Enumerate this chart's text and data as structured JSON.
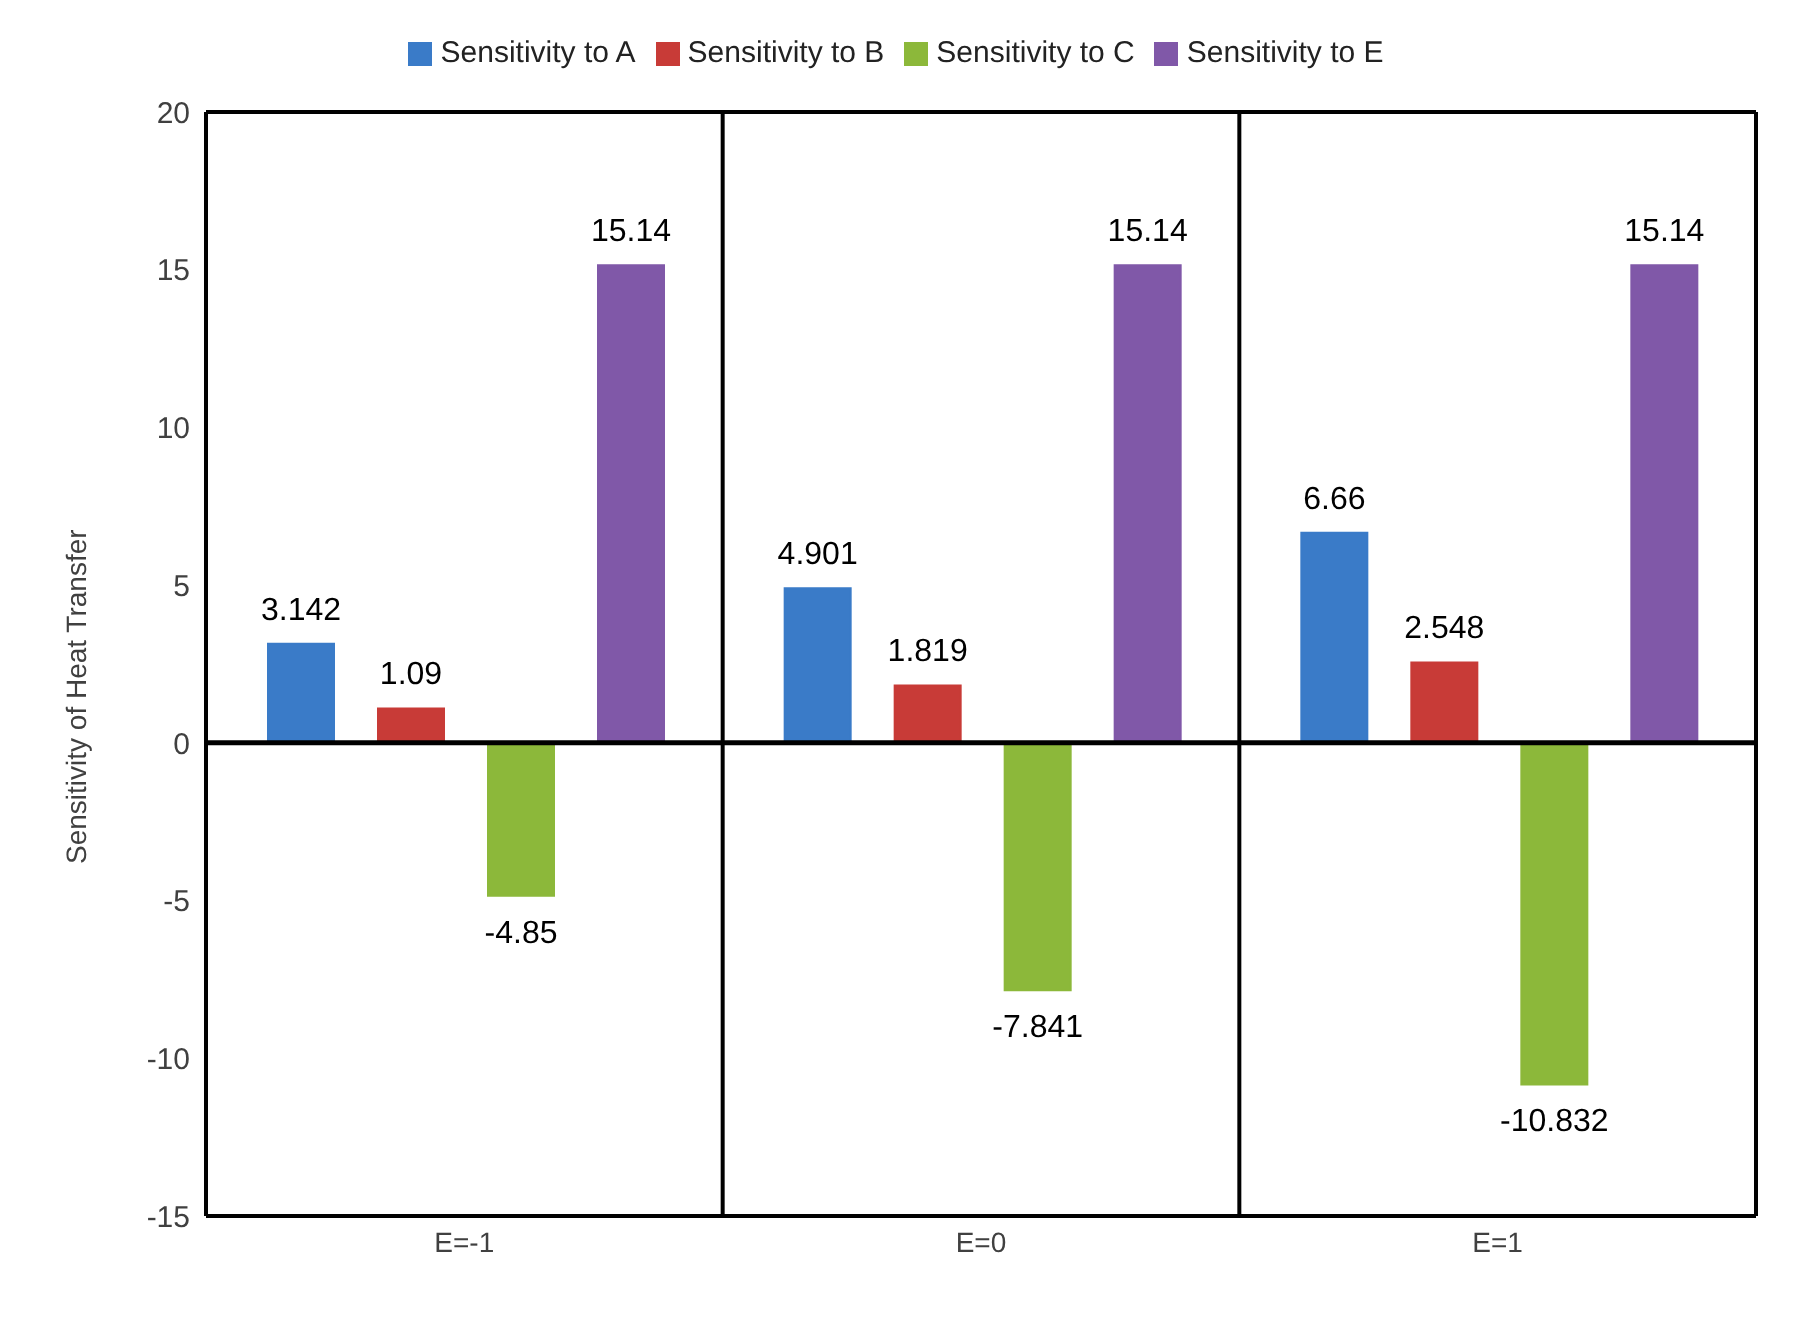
{
  "chart_data": {
    "type": "bar",
    "ylabel": "Sensitivity of Heat Transfer",
    "categories": [
      "E=-1",
      "E=0",
      "E=1"
    ],
    "series": [
      {
        "name": "Sensitivity to A",
        "color": "#3a7bc8",
        "values": [
          3.142,
          4.901,
          6.66
        ]
      },
      {
        "name": "Sensitivity to B",
        "color": "#c83b37",
        "values": [
          1.09,
          1.819,
          2.548
        ]
      },
      {
        "name": "Sensitivity to C",
        "color": "#8cb83a",
        "values": [
          -4.85,
          -7.841,
          -10.832
        ]
      },
      {
        "name": "Sensitivity to E",
        "color": "#8058a8",
        "values": [
          15.14,
          15.14,
          15.14
        ]
      }
    ],
    "ylim": [
      -15,
      20
    ],
    "yticks": [
      -15,
      -10,
      -5,
      0,
      5,
      10,
      15,
      20
    ],
    "grid": "x",
    "legend": "top",
    "data_labels": true
  }
}
